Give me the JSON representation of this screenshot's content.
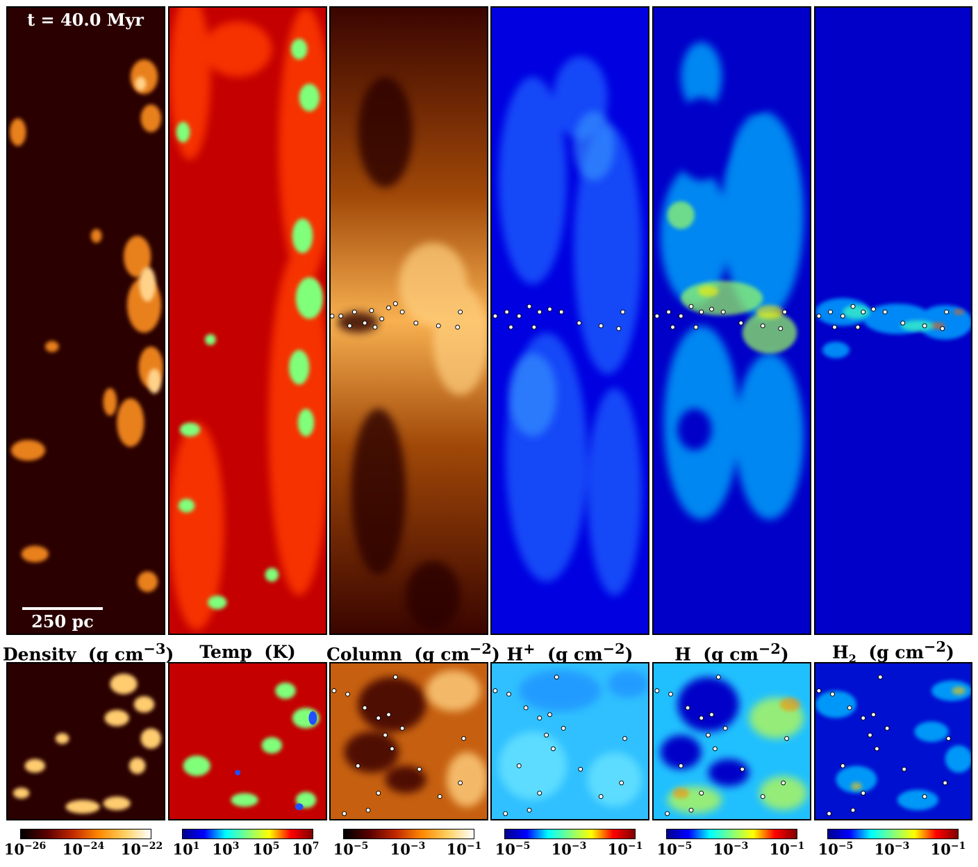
{
  "annotations": {
    "time": "t = 40.0 Myr",
    "scale": "250 pc"
  },
  "panels": [
    {
      "title": "Density",
      "unit": "(g cm",
      "exp": "−3",
      "close": ")",
      "cmap": "hot-dark",
      "ticks": [
        "−26",
        "−24",
        "−22"
      ]
    },
    {
      "title": "Temp",
      "unit": "(K)",
      "exp": "",
      "close": "",
      "cmap": "jet-red",
      "ticks": [
        "1",
        "3",
        "5",
        "7"
      ]
    },
    {
      "title": "Column",
      "unit": "(g cm",
      "exp": "−2",
      "close": ")",
      "cmap": "hot",
      "ticks": [
        "−5",
        "−3",
        "−1"
      ]
    },
    {
      "title": "H",
      "sup": "+",
      "unit": "(g cm",
      "exp": "−2",
      "close": ")",
      "cmap": "jet",
      "ticks": [
        "−5",
        "−3",
        "−1"
      ]
    },
    {
      "title": "H",
      "unit": "(g cm",
      "exp": "−2",
      "close": ")",
      "cmap": "jet",
      "ticks": [
        "−5",
        "−3",
        "−1"
      ]
    },
    {
      "title": "H",
      "sub": "2",
      "unit": "(g cm",
      "exp": "−2",
      "close": ")",
      "cmap": "jet",
      "ticks": [
        "−5",
        "−3",
        "−1"
      ]
    }
  ],
  "colors": {
    "hot_dark": "#2a0000",
    "hot_mid": "#e07a10",
    "hot_light": "#ffe9a0",
    "jet_blue": "#0000c8",
    "jet_cyan": "#3fe0ff",
    "jet_yellow": "#ffee00",
    "jet_red": "#cc0000",
    "temp_red": "#c40000",
    "temp_green": "#7fff7a"
  }
}
